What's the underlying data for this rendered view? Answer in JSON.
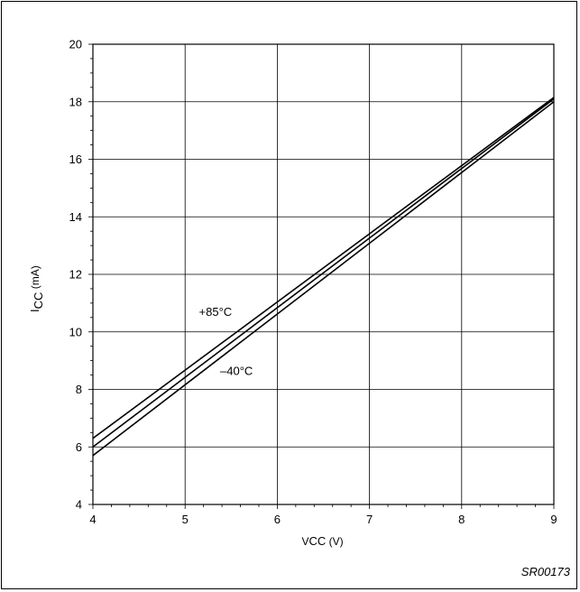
{
  "chart_data": {
    "type": "line",
    "title": "",
    "xlabel": {
      "main": "V",
      "sub": "CC",
      "unit": " (V)"
    },
    "ylabel": {
      "main": "I",
      "sub": "CC",
      "unit": " (mA)"
    },
    "xlim": [
      4,
      9
    ],
    "ylim": [
      4,
      20
    ],
    "x_ticks": [
      4,
      5,
      6,
      7,
      8,
      9
    ],
    "y_ticks": [
      4,
      6,
      8,
      10,
      12,
      14,
      16,
      18,
      20
    ],
    "x_minor_step": 0.2,
    "y_minor_step": 0.5,
    "grid": true,
    "line_color": "#000000",
    "series": [
      {
        "x": [
          4,
          9
        ],
        "y": [
          6.3,
          18.15
        ]
      },
      {
        "x": [
          4,
          9
        ],
        "y": [
          6.0,
          18.1
        ]
      },
      {
        "x": [
          4,
          9
        ],
        "y": [
          5.7,
          18.0
        ]
      }
    ],
    "annotations": [
      {
        "text": "+85°C",
        "x": 5.15,
        "y": 10.55
      },
      {
        "text": "–40°C",
        "x": 5.38,
        "y": 8.5
      }
    ],
    "figure_code": "SR00173"
  }
}
